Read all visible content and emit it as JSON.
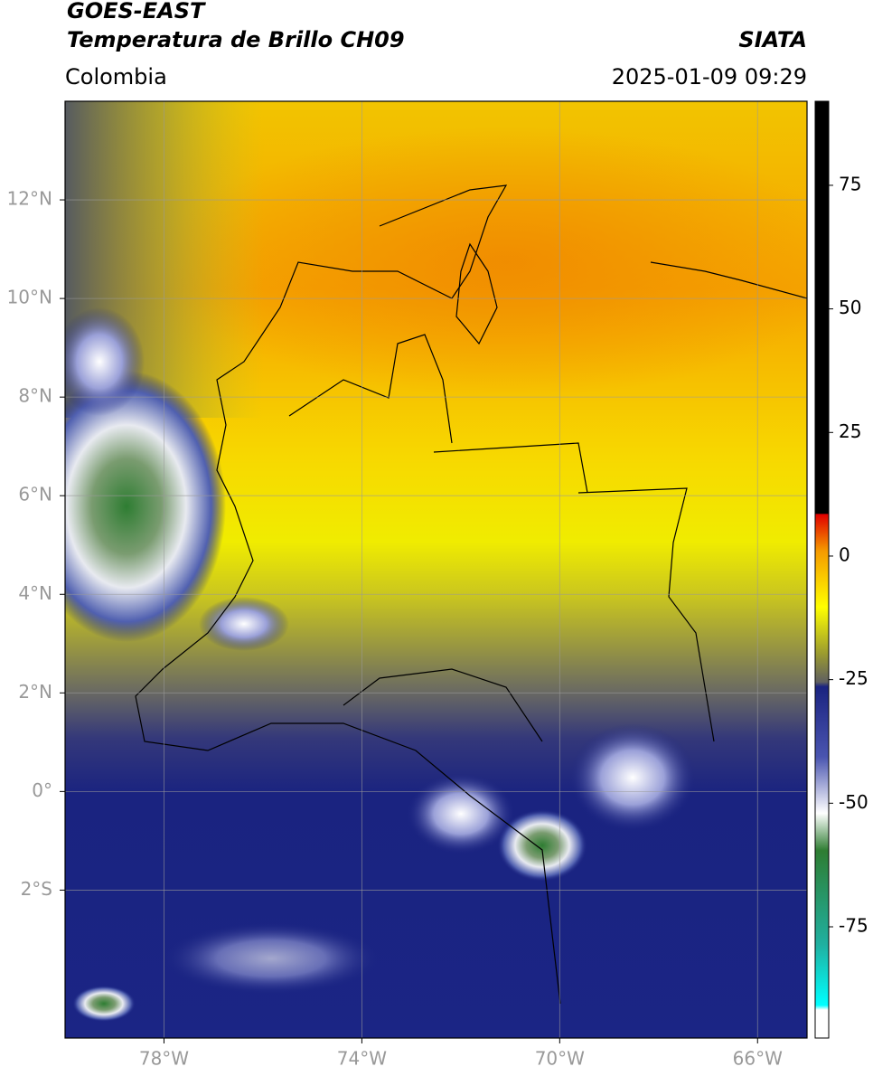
{
  "header": {
    "title": "GOES-EAST",
    "subtitle": "Temperatura de Brillo CH09",
    "source": "SIATA",
    "region": "Colombia",
    "timestamp": "2025-01-09 09:29"
  },
  "map": {
    "lonlim": [
      -80,
      -65
    ],
    "latlim": [
      -5,
      14
    ],
    "grid": true,
    "xticks": [
      {
        "value": -78,
        "label": "78°W"
      },
      {
        "value": -74,
        "label": "74°W"
      },
      {
        "value": -70,
        "label": "70°W"
      },
      {
        "value": -66,
        "label": "66°W"
      }
    ],
    "yticks": [
      {
        "value": 12,
        "label": "12°N"
      },
      {
        "value": 10,
        "label": "10°N"
      },
      {
        "value": 8,
        "label": "8°N"
      },
      {
        "value": 6,
        "label": "6°N"
      },
      {
        "value": 4,
        "label": "4°N"
      },
      {
        "value": 2,
        "label": "2°N"
      },
      {
        "value": 0,
        "label": "0°"
      },
      {
        "value": -2,
        "label": "2°S"
      }
    ]
  },
  "colorbar": {
    "lim": [
      -97.5,
      92
    ],
    "ticks": [
      75,
      50,
      25,
      0,
      -25,
      -50,
      -75
    ]
  }
}
